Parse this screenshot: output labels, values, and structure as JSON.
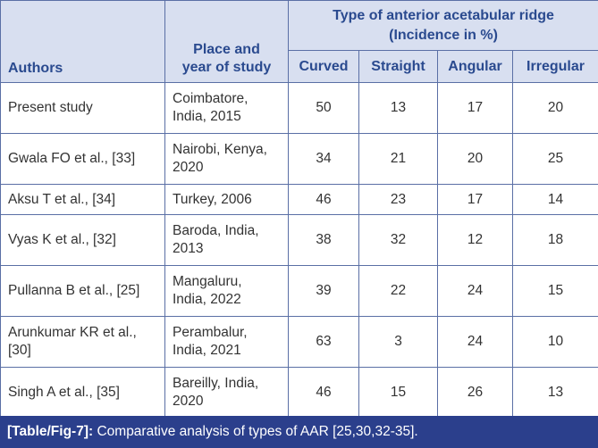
{
  "table": {
    "headers": {
      "authors": "Authors",
      "place_line1": "Place and",
      "place_line2": "year of study",
      "group_line1": "Type of anterior acetabular ridge",
      "group_line2": "(Incidence in %)",
      "types": [
        "Curved",
        "Straight",
        "Angular",
        "Irregular"
      ]
    },
    "rows": [
      {
        "author": "Present study",
        "place_line1": "Coimbatore,",
        "place_line2": "India, 2015",
        "values": [
          "50",
          "13",
          "17",
          "20"
        ]
      },
      {
        "author": "Gwala FO et al., [33]",
        "place_line1": "Nairobi, Kenya,",
        "place_line2": "2020",
        "values": [
          "34",
          "21",
          "20",
          "25"
        ]
      },
      {
        "author": "Aksu T et al., [34]",
        "place_line1": "Turkey, 2006",
        "place_line2": "",
        "values": [
          "46",
          "23",
          "17",
          "14"
        ]
      },
      {
        "author": "Vyas K et al., [32]",
        "place_line1": "Baroda, India,",
        "place_line2": "2013",
        "values": [
          "38",
          "32",
          "12",
          "18"
        ]
      },
      {
        "author": "Pullanna B et al., [25]",
        "place_line1": "Mangaluru,",
        "place_line2": "India, 2022",
        "values": [
          "39",
          "22",
          "24",
          "15"
        ]
      },
      {
        "author": "Arunkumar KR et al.,",
        "author_line2": "[30]",
        "place_line1": "Perambalur,",
        "place_line2": "India, 2021",
        "values": [
          "63",
          "3",
          "24",
          "10"
        ]
      },
      {
        "author": "Singh A et al., [35]",
        "place_line1": "Bareilly, India,",
        "place_line2": "2020",
        "values": [
          "46",
          "15",
          "26",
          "13"
        ]
      }
    ]
  },
  "caption": {
    "label": "[Table/Fig-7]:",
    "text": " Comparative analysis of types of AAR [25,30,32-35]."
  },
  "colors": {
    "header_bg": "#d8dff0",
    "header_text": "#2a4a8f",
    "border": "#5a6fa5",
    "caption_bg": "#2b3f8c"
  }
}
